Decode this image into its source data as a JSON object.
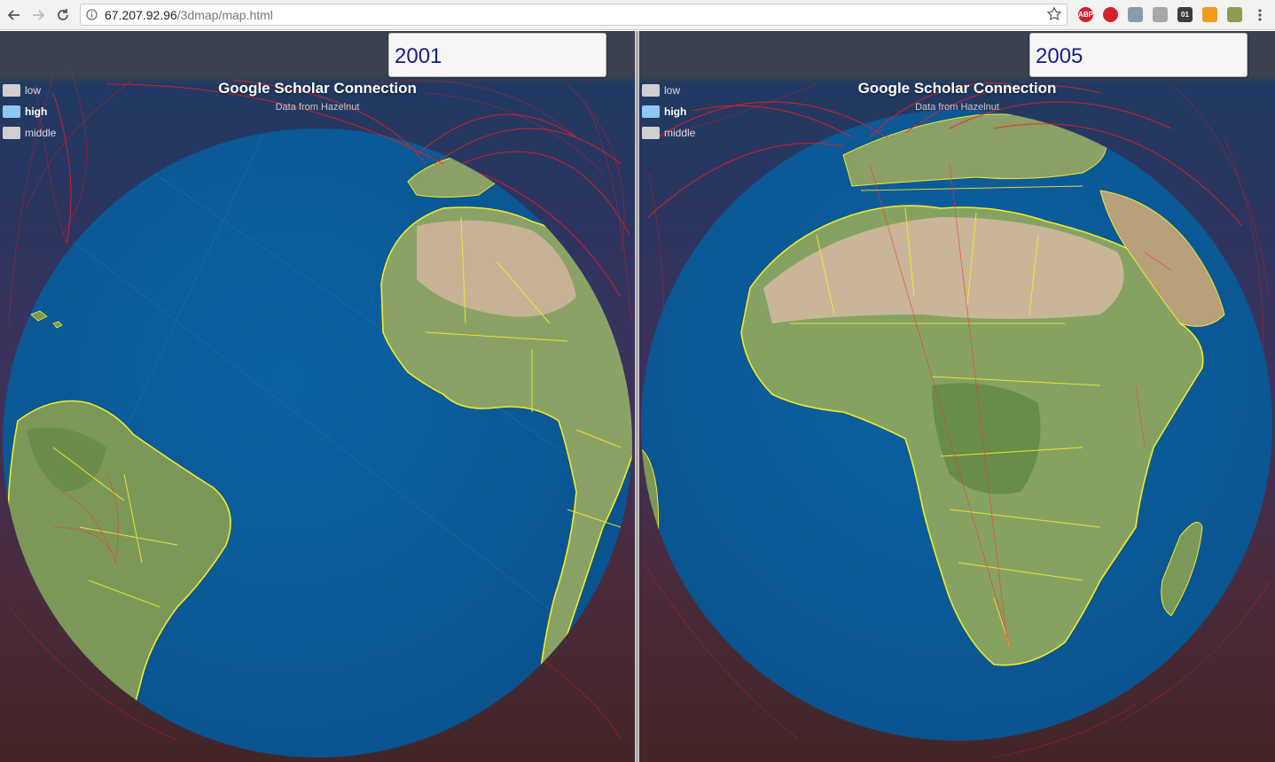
{
  "browser": {
    "url_host": "67.207.92.96",
    "url_path": "/3dmap/map.html",
    "extensions": [
      {
        "name": "adblock-plus-icon",
        "label": "ABP",
        "color": "#d6202b"
      },
      {
        "name": "ublock-icon",
        "label": "",
        "color": "#d6202b"
      },
      {
        "name": "satellite-icon",
        "label": "",
        "color": "#8a9bb0"
      },
      {
        "name": "android-icon",
        "label": "",
        "color": "#a7a7a7"
      },
      {
        "name": "counter-icon",
        "label": "01",
        "color": "#3d3d3d"
      },
      {
        "name": "rss-icon",
        "label": "",
        "color": "#f19a1c"
      },
      {
        "name": "puzzle-icon",
        "label": "",
        "color": "#8e9b4f"
      }
    ]
  },
  "left_map": {
    "year": "2001",
    "title": "Google Scholar Connection",
    "subtitle": "Data from Hazelnut",
    "legend": [
      {
        "label": "low",
        "color": "#cfcfcf"
      },
      {
        "label": "high",
        "color": "#8ccaf4"
      },
      {
        "label": "middle",
        "color": "#cfcfcf"
      }
    ]
  },
  "right_map": {
    "year": "2005",
    "title": "Google Scholar Connection",
    "subtitle": "Data from Hazelnut",
    "legend": [
      {
        "label": "low",
        "color": "#cfcfcf"
      },
      {
        "label": "high",
        "color": "#8ccaf4"
      },
      {
        "label": "middle",
        "color": "#cfcfcf"
      }
    ]
  },
  "colors": {
    "ocean": "#0a5a98",
    "land": "#7f9a5c",
    "desert": "#c9a78a",
    "border": "#f5ef2a",
    "connection": "#ff1a1a"
  }
}
